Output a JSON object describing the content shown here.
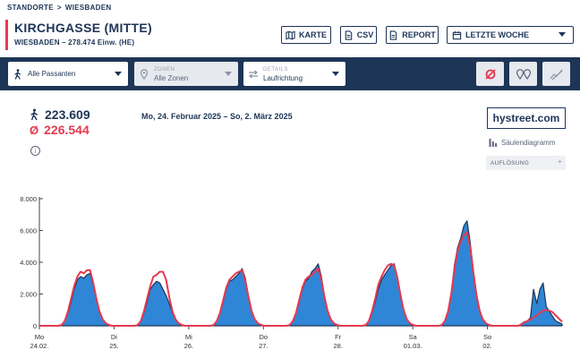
{
  "breadcrumb": {
    "root": "STANDORTE",
    "sep": ">",
    "current": "WIESBADEN"
  },
  "header": {
    "title": "KIRCHGASSE (MITTE)",
    "subtitle": "WIESBADEN – 278.474 Einw. (HE)"
  },
  "actions": {
    "map": "KARTE",
    "csv": "CSV",
    "report": "REPORT",
    "period": "LETZTE WOCHE"
  },
  "filters": {
    "passanten": {
      "value": "Alle Passanten"
    },
    "zonen": {
      "label": "ZONEN",
      "value": "Alle Zonen"
    },
    "details": {
      "label": "DETAILS",
      "value": "Laufrichtung"
    }
  },
  "stats": {
    "total": "223.609",
    "avg_symbol": "Ø",
    "average": "226.544",
    "info": "i"
  },
  "date_range": "Mo, 24. Februar 2025 – So, 2. März 2025",
  "brand": "hystreet.com",
  "chart_type_label": "Säulendiagramm",
  "resolution_label": "AUFLÖSUNG",
  "resolution_plus": "+",
  "colors": {
    "navy": "#1d3557",
    "accent": "#e63950",
    "fill": "#2f86d6"
  },
  "chart_data": {
    "type": "area",
    "ylim": [
      0,
      8000
    ],
    "yticks": [
      "0",
      "2.000",
      "4.000",
      "6.000",
      "8.000"
    ],
    "xticks": [
      {
        "d": "Mo",
        "t": "24.02."
      },
      {
        "d": "Di",
        "t": "25."
      },
      {
        "d": "Mi",
        "t": "26."
      },
      {
        "d": "Do",
        "t": "27."
      },
      {
        "d": "Fr",
        "t": "28."
      },
      {
        "d": "Sa",
        "t": "01.03."
      },
      {
        "d": "So",
        "t": "02."
      }
    ],
    "series": [
      {
        "values": [
          0,
          0,
          0,
          0,
          0,
          0,
          0,
          50,
          300,
          800,
          1500,
          2300,
          2900,
          3100,
          3000,
          3200,
          3300,
          2600,
          1700,
          900,
          400,
          150,
          50,
          0,
          0,
          0,
          0,
          0,
          0,
          0,
          0,
          50,
          300,
          800,
          1500,
          2300,
          2600,
          2800,
          2700,
          2300,
          1900,
          1400,
          800,
          400,
          150,
          50,
          0,
          0,
          0,
          0,
          0,
          0,
          0,
          0,
          0,
          50,
          300,
          800,
          1500,
          2300,
          2800,
          2900,
          3100,
          3300,
          3600,
          3000,
          1900,
          1000,
          400,
          150,
          50,
          0,
          0,
          0,
          0,
          0,
          0,
          0,
          0,
          50,
          300,
          800,
          1500,
          2300,
          2800,
          3000,
          3400,
          3600,
          3900,
          3100,
          1900,
          1000,
          400,
          150,
          50,
          0,
          0,
          0,
          0,
          0,
          0,
          0,
          0,
          50,
          300,
          800,
          1500,
          2300,
          2900,
          3200,
          3500,
          3800,
          3900,
          3100,
          2000,
          1000,
          400,
          150,
          50,
          0,
          0,
          0,
          0,
          0,
          0,
          0,
          0,
          50,
          300,
          900,
          2000,
          3800,
          4900,
          5500,
          6300,
          6600,
          5200,
          3500,
          2000,
          1000,
          400,
          150,
          50,
          0,
          0,
          0,
          0,
          0,
          0,
          0,
          0,
          0,
          100,
          250,
          300,
          500,
          2300,
          1400,
          2300,
          2700,
          1200,
          900,
          600,
          300,
          200,
          100
        ]
      },
      {
        "name": "Ø",
        "values": [
          0,
          0,
          0,
          0,
          0,
          0,
          0,
          50,
          300,
          900,
          1700,
          2500,
          3100,
          3400,
          3300,
          3500,
          3500,
          2700,
          1700,
          900,
          400,
          150,
          50,
          0,
          0,
          0,
          0,
          0,
          0,
          0,
          0,
          50,
          300,
          900,
          1700,
          2500,
          3100,
          3200,
          3400,
          3400,
          2900,
          1800,
          900,
          400,
          150,
          50,
          0,
          0,
          0,
          0,
          0,
          0,
          0,
          0,
          0,
          50,
          300,
          800,
          1600,
          2400,
          2900,
          3100,
          3300,
          3400,
          3500,
          2800,
          1800,
          900,
          400,
          150,
          50,
          0,
          0,
          0,
          0,
          0,
          0,
          0,
          0,
          50,
          300,
          800,
          1600,
          2400,
          2900,
          3100,
          3200,
          3400,
          3600,
          2900,
          1800,
          900,
          400,
          150,
          50,
          0,
          0,
          0,
          0,
          0,
          0,
          0,
          0,
          50,
          300,
          900,
          1700,
          2600,
          3100,
          3500,
          3800,
          3900,
          3800,
          3000,
          1900,
          1000,
          400,
          150,
          50,
          0,
          0,
          0,
          0,
          0,
          0,
          0,
          0,
          50,
          300,
          900,
          2000,
          3500,
          4700,
          5300,
          5700,
          5900,
          4900,
          3300,
          1900,
          900,
          400,
          150,
          50,
          0,
          0,
          0,
          0,
          0,
          0,
          0,
          0,
          0,
          50,
          200,
          300,
          400,
          500,
          650,
          800,
          950,
          1000,
          950,
          850,
          650,
          450,
          250
        ]
      }
    ]
  }
}
